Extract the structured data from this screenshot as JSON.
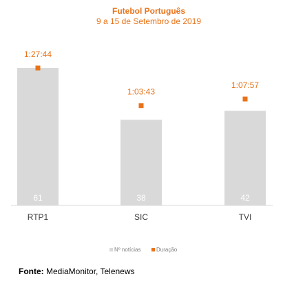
{
  "chart_data": {
    "type": "bar",
    "title": "Futebol Português",
    "subtitle": "9 a 15 de Setembro de 2019",
    "categories": [
      "RTP1",
      "SIC",
      "TVI"
    ],
    "series": [
      {
        "name": "Nº notícias",
        "values": [
          61,
          38,
          42
        ],
        "color": "#D9D9D9"
      },
      {
        "name": "Duração",
        "values": [
          "1:27:44",
          "1:03:43",
          "1:07:57"
        ],
        "seconds": [
          5264,
          3823,
          4077
        ],
        "color": "#E8731A"
      }
    ],
    "legend_position": "bottom",
    "grid": false
  },
  "source": {
    "label": "Fonte:",
    "text": "MediaMonitor, Telenews"
  }
}
